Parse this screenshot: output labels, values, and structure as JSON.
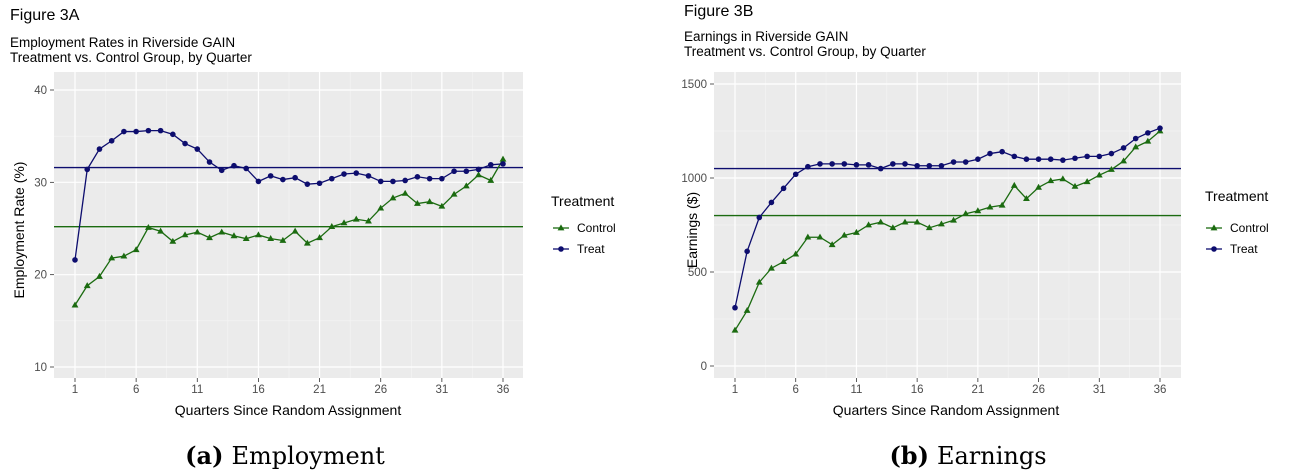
{
  "chart_data": [
    {
      "type": "line",
      "figure_label": "Figure 3A",
      "title": "Employment Rates in Riverside GAIN",
      "subtitle": "Treatment vs. Control Group, by Quarter",
      "xlabel": "Quarters Since Random Assignment",
      "ylabel": "Employment Rate (%)",
      "xlim": [
        1,
        36
      ],
      "ylim": [
        10,
        40
      ],
      "xticks": [
        1,
        6,
        11,
        16,
        21,
        26,
        31,
        36
      ],
      "yticks": [
        10,
        20,
        30,
        40
      ],
      "grid": true,
      "legend": {
        "title": "Treatment",
        "position": "right"
      },
      "x": [
        1,
        2,
        3,
        4,
        5,
        6,
        7,
        8,
        9,
        10,
        11,
        12,
        13,
        14,
        15,
        16,
        17,
        18,
        19,
        20,
        21,
        22,
        23,
        24,
        25,
        26,
        27,
        28,
        29,
        30,
        31,
        32,
        33,
        34,
        35,
        36
      ],
      "series": [
        {
          "name": "Control",
          "color": "#1b6b10",
          "marker": "triangle",
          "values": [
            16.7,
            18.8,
            19.8,
            21.8,
            22.0,
            22.7,
            25.1,
            24.7,
            23.6,
            24.3,
            24.6,
            24.0,
            24.6,
            24.2,
            23.9,
            24.3,
            23.9,
            23.7,
            24.7,
            23.4,
            24.0,
            25.2,
            25.6,
            26.0,
            25.8,
            27.2,
            28.3,
            28.8,
            27.7,
            27.9,
            27.4,
            28.7,
            29.6,
            30.8,
            30.2,
            32.5
          ],
          "reference_line": 25.2
        },
        {
          "name": "Treat",
          "color": "#0d0d6e",
          "marker": "circle",
          "values": [
            21.6,
            31.4,
            33.6,
            34.5,
            35.5,
            35.5,
            35.6,
            35.6,
            35.2,
            34.2,
            33.6,
            32.2,
            31.3,
            31.8,
            31.5,
            30.1,
            30.7,
            30.3,
            30.5,
            29.8,
            29.9,
            30.4,
            30.9,
            31.0,
            30.7,
            30.1,
            30.1,
            30.2,
            30.6,
            30.4,
            30.4,
            31.2,
            31.2,
            31.4,
            31.9,
            32.0
          ],
          "reference_line": 31.6
        }
      ],
      "caption_label": "(a)",
      "caption_text": "Employment"
    },
    {
      "type": "line",
      "figure_label": "Figure 3B",
      "title": "Earnings in Riverside GAIN",
      "subtitle": "Treatment vs. Control Group, by Quarter",
      "xlabel": "Quarters Since Random Assignment",
      "ylabel": "Earnings ($)",
      "xlim": [
        1,
        36
      ],
      "ylim": [
        0,
        1500
      ],
      "xticks": [
        1,
        6,
        11,
        16,
        21,
        26,
        31,
        36
      ],
      "yticks": [
        0,
        500,
        1000,
        1500
      ],
      "grid": true,
      "legend": {
        "title": "Treatment",
        "position": "right"
      },
      "x": [
        1,
        2,
        3,
        4,
        5,
        6,
        7,
        8,
        9,
        10,
        11,
        12,
        13,
        14,
        15,
        16,
        17,
        18,
        19,
        20,
        21,
        22,
        23,
        24,
        25,
        26,
        27,
        28,
        29,
        30,
        31,
        32,
        33,
        34,
        35,
        36
      ],
      "series": [
        {
          "name": "Control",
          "color": "#1b6b10",
          "marker": "triangle",
          "values": [
            190,
            295,
            445,
            520,
            555,
            595,
            685,
            685,
            645,
            695,
            710,
            750,
            765,
            735,
            765,
            765,
            735,
            755,
            775,
            810,
            825,
            845,
            855,
            960,
            890,
            950,
            985,
            995,
            955,
            980,
            1015,
            1045,
            1090,
            1165,
            1195,
            1250
          ],
          "reference_line": 800
        },
        {
          "name": "Treat",
          "color": "#0d0d6e",
          "marker": "circle",
          "values": [
            310,
            610,
            790,
            870,
            945,
            1020,
            1060,
            1075,
            1075,
            1075,
            1070,
            1070,
            1050,
            1075,
            1075,
            1065,
            1065,
            1065,
            1085,
            1085,
            1100,
            1130,
            1140,
            1115,
            1100,
            1100,
            1100,
            1095,
            1105,
            1115,
            1115,
            1130,
            1160,
            1210,
            1240,
            1265
          ],
          "reference_line": 1050
        }
      ],
      "caption_label": "(b)",
      "caption_text": "Earnings"
    }
  ]
}
